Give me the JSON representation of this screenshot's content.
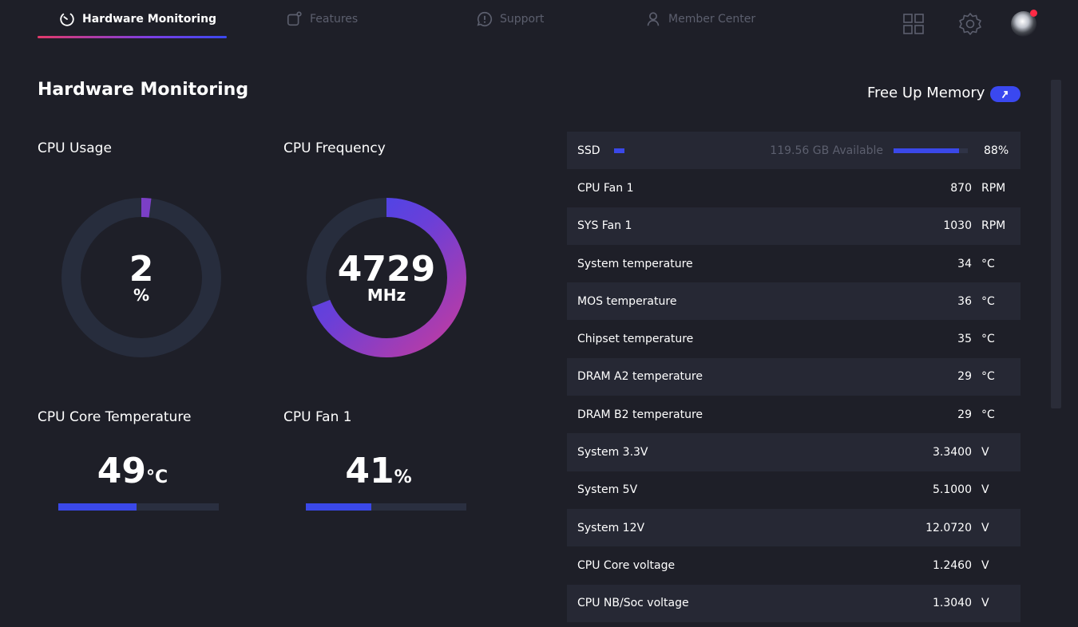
{
  "nav": {
    "tabs": [
      {
        "label": "Hardware Monitoring",
        "icon": "speedometer-icon",
        "active": true
      },
      {
        "label": "Features",
        "icon": "features-icon",
        "active": false
      },
      {
        "label": "Support",
        "icon": "support-icon",
        "active": false
      },
      {
        "label": "Member Center",
        "icon": "user-icon",
        "active": false
      }
    ],
    "right_icons": [
      "grid-icon",
      "gear-icon",
      "avatar"
    ]
  },
  "page_title": "Hardware Monitoring",
  "cpu_usage": {
    "label": "CPU Usage",
    "value": "2",
    "unit": "%",
    "percent": 2
  },
  "cpu_frequency": {
    "label": "CPU Frequency",
    "value": "4729",
    "unit": "MHz",
    "fraction": 0.69
  },
  "cpu_core_temp": {
    "label": "CPU Core Temperature",
    "value": "49",
    "unit": "°C",
    "bar_percent": 49
  },
  "cpu_fan": {
    "label": "CPU Fan 1",
    "value": "41",
    "unit": "%",
    "bar_percent": 41
  },
  "free_memory": {
    "label": "Free Up Memory"
  },
  "ssd": {
    "label": "SSD",
    "available": "119.56 GB Available",
    "percent_text": "88%",
    "percent": 88
  },
  "sensors": [
    {
      "label": "CPU Fan 1",
      "value": "870",
      "unit": "RPM"
    },
    {
      "label": "SYS Fan 1",
      "value": "1030",
      "unit": "RPM"
    },
    {
      "label": "System temperature",
      "value": "34",
      "unit": "°C"
    },
    {
      "label": "MOS temperature",
      "value": "36",
      "unit": "°C"
    },
    {
      "label": "Chipset temperature",
      "value": "35",
      "unit": "°C"
    },
    {
      "label": "DRAM A2 temperature",
      "value": "29",
      "unit": "°C"
    },
    {
      "label": "DRAM B2 temperature",
      "value": "29",
      "unit": "°C"
    },
    {
      "label": "System 3.3V",
      "value": "3.3400",
      "unit": "V"
    },
    {
      "label": "System 5V",
      "value": "5.1000",
      "unit": "V"
    },
    {
      "label": "System 12V",
      "value": "12.0720",
      "unit": "V"
    },
    {
      "label": "CPU Core voltage",
      "value": "1.2460",
      "unit": "V"
    },
    {
      "label": "CPU NB/Soc voltage",
      "value": "1.3040",
      "unit": "V"
    }
  ],
  "colors": {
    "background": "#1e1f28",
    "accent": "#3a48e8",
    "gradient_start": "#c23ba0",
    "gradient_end": "#3a48f0",
    "notification": "#ff2a45"
  }
}
